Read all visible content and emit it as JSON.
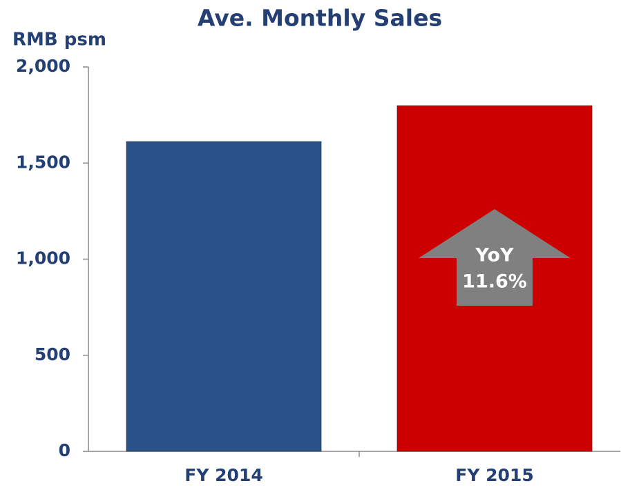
{
  "chart_data": {
    "type": "bar",
    "title": "Ave. Monthly Sales",
    "y_axis_label": "RMB psm",
    "categories": [
      "FY 2014",
      "FY 2015"
    ],
    "values": [
      1612,
      1799
    ],
    "colors": [
      "#2a5289",
      "#cc0000"
    ],
    "ylim": [
      0,
      2000
    ],
    "yticks": [
      0,
      500,
      {
        "value": 1000,
        "label": "1,000"
      },
      {
        "value": 1500,
        "label": "1,500"
      },
      {
        "value": 2000,
        "label": "2,000"
      }
    ],
    "grid": false,
    "annotation": {
      "lines": [
        "YoY",
        "11.6%"
      ],
      "color": "#808080"
    }
  }
}
